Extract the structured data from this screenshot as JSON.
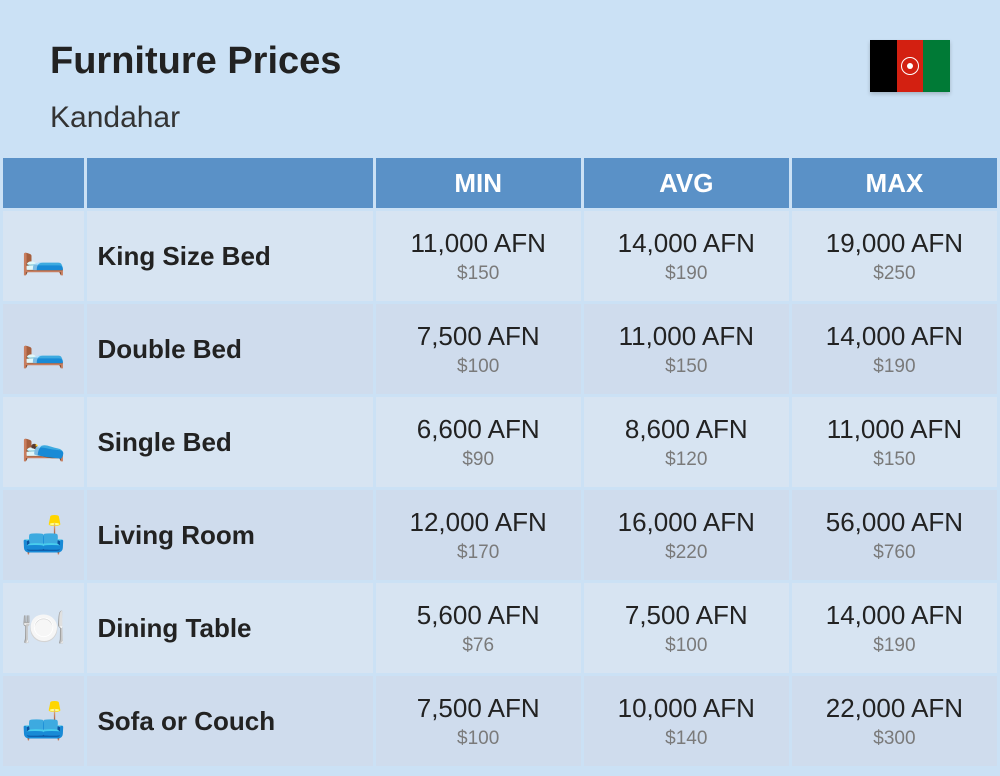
{
  "header": {
    "title": "Furniture Prices",
    "subtitle": "Kandahar",
    "flag_colors": [
      "#000000",
      "#d32011",
      "#007a36"
    ]
  },
  "columns": {
    "min": "MIN",
    "avg": "AVG",
    "max": "MAX"
  },
  "table_style": {
    "header_bg": "#5a91c7",
    "header_text": "#ffffff",
    "row_bg_a": "#d7e4f2",
    "row_bg_b": "#cfdced",
    "afn_fontsize": 26,
    "usd_fontsize": 19,
    "usd_color": "#7a7a7a"
  },
  "rows": [
    {
      "icon": "🛏️",
      "name": "King Size Bed",
      "min_afn": "11,000 AFN",
      "min_usd": "$150",
      "avg_afn": "14,000 AFN",
      "avg_usd": "$190",
      "max_afn": "19,000 AFN",
      "max_usd": "$250"
    },
    {
      "icon": "🛏️",
      "name": "Double Bed",
      "min_afn": "7,500 AFN",
      "min_usd": "$100",
      "avg_afn": "11,000 AFN",
      "avg_usd": "$150",
      "max_afn": "14,000 AFN",
      "max_usd": "$190"
    },
    {
      "icon": "🛌",
      "name": "Single Bed",
      "min_afn": "6,600 AFN",
      "min_usd": "$90",
      "avg_afn": "8,600 AFN",
      "avg_usd": "$120",
      "max_afn": "11,000 AFN",
      "max_usd": "$150"
    },
    {
      "icon": "🛋️",
      "name": "Living Room",
      "min_afn": "12,000 AFN",
      "min_usd": "$170",
      "avg_afn": "16,000 AFN",
      "avg_usd": "$220",
      "max_afn": "56,000 AFN",
      "max_usd": "$760"
    },
    {
      "icon": "🍽️",
      "name": "Dining Table",
      "min_afn": "5,600 AFN",
      "min_usd": "$76",
      "avg_afn": "7,500 AFN",
      "avg_usd": "$100",
      "max_afn": "14,000 AFN",
      "max_usd": "$190"
    },
    {
      "icon": "🛋️",
      "name": "Sofa or Couch",
      "min_afn": "7,500 AFN",
      "min_usd": "$100",
      "avg_afn": "10,000 AFN",
      "avg_usd": "$140",
      "max_afn": "22,000 AFN",
      "max_usd": "$300"
    }
  ]
}
